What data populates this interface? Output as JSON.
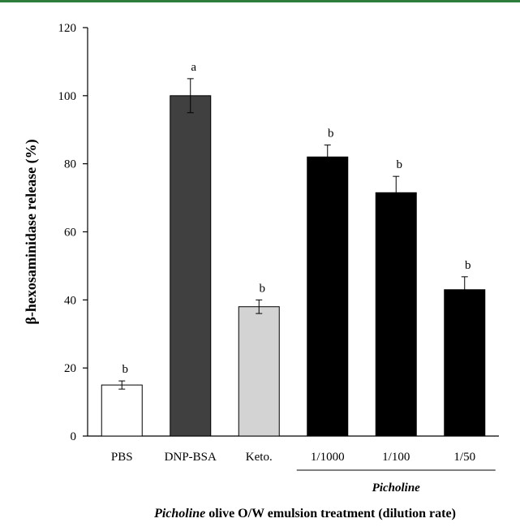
{
  "chart_data": {
    "type": "bar",
    "ylabel": "β-hexosaminidase release (%)",
    "xlabel_italic": "Picholine",
    "xlabel_rest": " olive O/W emulsion treatment (dilution rate)",
    "ylim": [
      0,
      120
    ],
    "yticks": [
      0,
      20,
      40,
      60,
      80,
      100,
      120
    ],
    "grid": false,
    "categories": [
      "PBS",
      "DNP-BSA",
      "Keto.",
      "1/1000",
      "1/100",
      "1/50"
    ],
    "values": [
      15,
      100,
      38,
      82,
      71.5,
      43
    ],
    "errors": [
      1.2,
      5,
      2,
      3.5,
      4.8,
      3.8
    ],
    "significance": [
      "b",
      "a",
      "b",
      "b",
      "b",
      "b"
    ],
    "colors": [
      "#ffffff",
      "#404040",
      "#d3d3d3",
      "#000000",
      "#000000",
      "#000000"
    ],
    "group_label": "Picholine"
  }
}
